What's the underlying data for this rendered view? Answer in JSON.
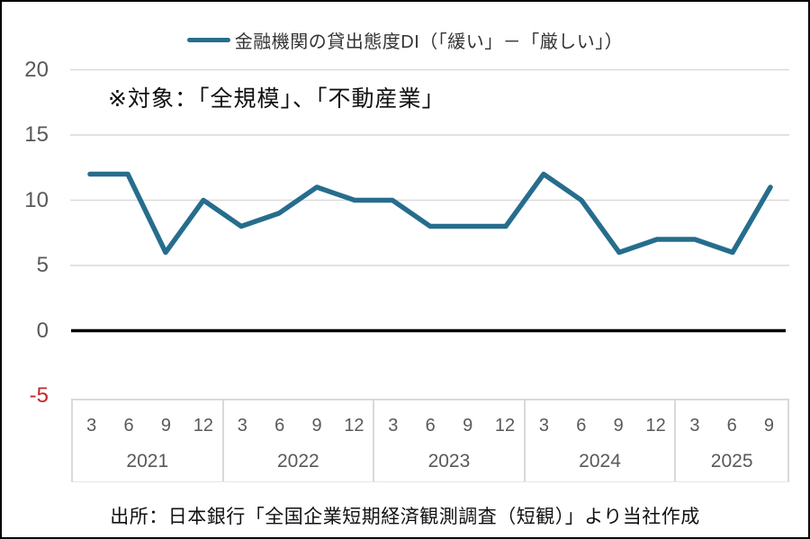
{
  "legend": {
    "label": "金融機関の貸出態度DI（「緩い」－「厳しい」）"
  },
  "annotation": "※対象：「全規模」、「不動産業」",
  "source": "出所：日本銀行「全国企業短期経済観測調査（短観）」より当社作成",
  "colors": {
    "line": "#266D8D",
    "grid": "#D9D9D9",
    "zero_line": "#000000",
    "axis_text": "#595959",
    "negative_tick": "#C3272B",
    "table_border": "#D9D9D9"
  },
  "chart_data": {
    "type": "line",
    "title": "",
    "xlabel": "",
    "ylabel": "",
    "ylim": [
      -5,
      20
    ],
    "yticks": [
      20,
      15,
      10,
      5,
      0,
      -5
    ],
    "grid": true,
    "legend_position": "top",
    "zero_baseline": true,
    "x_groups": [
      {
        "year": "2021",
        "quarters": [
          "3",
          "6",
          "9",
          "12"
        ]
      },
      {
        "year": "2022",
        "quarters": [
          "3",
          "6",
          "9",
          "12"
        ]
      },
      {
        "year": "2023",
        "quarters": [
          "3",
          "6",
          "9",
          "12"
        ]
      },
      {
        "year": "2024",
        "quarters": [
          "3",
          "6",
          "9",
          "12"
        ]
      },
      {
        "year": "2025",
        "quarters": [
          "3",
          "6",
          "9"
        ]
      }
    ],
    "series": [
      {
        "name": "金融機関の貸出態度DI（「緩い」－「厳しい」）",
        "values": [
          12,
          12,
          6,
          10,
          8,
          9,
          11,
          10,
          10,
          8,
          8,
          8,
          12,
          10,
          6,
          7,
          7,
          6,
          11
        ]
      }
    ]
  }
}
